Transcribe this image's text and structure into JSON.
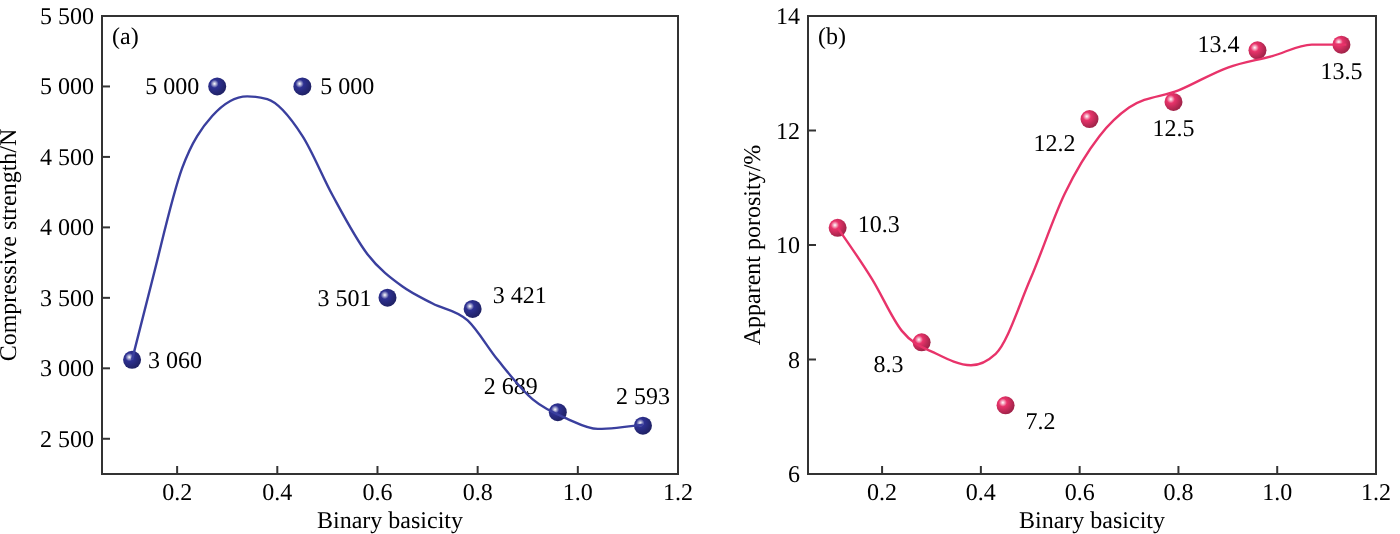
{
  "chart_data": [
    {
      "type": "scatter",
      "annotations": [
        "(a)"
      ],
      "xlabel": "Binary basicity",
      "ylabel": "Compressive strength/N",
      "xlim": [
        0.05,
        1.2
      ],
      "ylim": [
        2250,
        5500
      ],
      "xticks": [
        {
          "value": 0.2,
          "label": "0.2"
        },
        {
          "value": 0.4,
          "label": "0.4"
        },
        {
          "value": 0.6,
          "label": "0.6"
        },
        {
          "value": 0.8,
          "label": "0.8"
        },
        {
          "value": 1.0,
          "label": "1.0"
        },
        {
          "value": 1.2,
          "label": "1.2"
        }
      ],
      "yticks": [
        {
          "value": 2500,
          "label": "2 500"
        },
        {
          "value": 3000,
          "label": "3 000"
        },
        {
          "value": 3500,
          "label": "3 500"
        },
        {
          "value": 4000,
          "label": "4 000"
        },
        {
          "value": 4500,
          "label": "4 500"
        },
        {
          "value": 5000,
          "label": "5 000"
        },
        {
          "value": 5500,
          "label": "5 500"
        }
      ],
      "x": [
        0.11,
        0.28,
        0.45,
        0.62,
        0.79,
        0.96,
        1.13
      ],
      "series": [
        {
          "color": "#2e3192",
          "marker": "circle",
          "values": [
            3060,
            5000,
            5000,
            3501,
            3421,
            2689,
            2593
          ],
          "value_labels": [
            "3 060",
            "5 000",
            "5 000",
            "3 501",
            "3 421",
            "2 689",
            "2 593"
          ]
        },
        {
          "type": "line",
          "color": "#3a3f9e",
          "x": [
            0.11,
            0.15,
            0.21,
            0.27,
            0.34,
            0.38,
            0.45,
            0.51,
            0.58,
            0.65,
            0.71,
            0.78,
            0.84,
            0.91,
            0.98,
            1.04,
            1.13
          ],
          "values": [
            3060,
            3620,
            4420,
            4790,
            4930,
            4910,
            4650,
            4230,
            3810,
            3580,
            3460,
            3340,
            3060,
            2780,
            2640,
            2570,
            2600
          ]
        }
      ]
    },
    {
      "type": "scatter",
      "annotations": [
        "(b)"
      ],
      "xlabel": "Binary basicity",
      "ylabel": "Apparent porosity/%",
      "xlim": [
        0.05,
        1.2
      ],
      "ylim": [
        6,
        14
      ],
      "xticks": [
        {
          "value": 0.2,
          "label": "0.2"
        },
        {
          "value": 0.4,
          "label": "0.4"
        },
        {
          "value": 0.6,
          "label": "0.6"
        },
        {
          "value": 0.8,
          "label": "0.8"
        },
        {
          "value": 1.0,
          "label": "1.0"
        },
        {
          "value": 1.2,
          "label": "1.2"
        }
      ],
      "yticks": [
        6,
        8,
        10,
        12,
        14
      ],
      "x": [
        0.11,
        0.28,
        0.45,
        0.62,
        0.79,
        0.96,
        1.13
      ],
      "series": [
        {
          "color": "#e8336a",
          "marker": "circle",
          "values": [
            10.3,
            8.3,
            7.2,
            12.2,
            12.5,
            13.4,
            13.5
          ],
          "value_labels": [
            "10.3",
            "8.3",
            "7.2",
            "12.2",
            "12.5",
            "13.4",
            "13.5"
          ]
        },
        {
          "type": "line",
          "color": "#e8336a",
          "x": [
            0.11,
            0.18,
            0.24,
            0.31,
            0.38,
            0.43,
            0.5,
            0.57,
            0.64,
            0.7,
            0.8,
            0.9,
            0.99,
            1.07,
            1.14
          ],
          "values": [
            10.3,
            9.4,
            8.5,
            8.1,
            7.9,
            8.1,
            9.4,
            10.9,
            11.9,
            12.4,
            12.7,
            13.1,
            13.3,
            13.5,
            13.5
          ]
        }
      ]
    }
  ]
}
